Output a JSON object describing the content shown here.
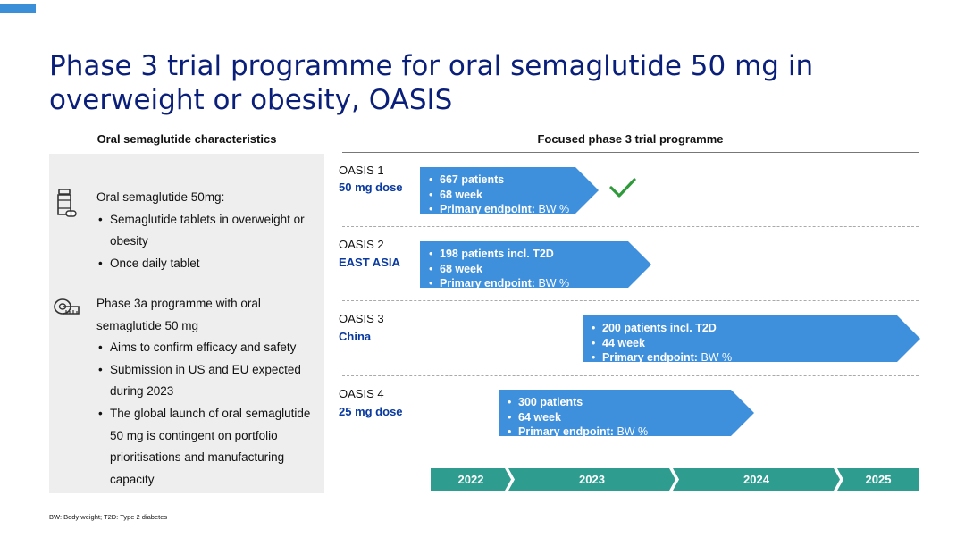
{
  "title": "Phase 3 trial programme for oral semaglutide 50 mg in overweight or obesity, OASIS",
  "left_header": "Oral semaglutide  characteristics",
  "right_header": "Focused phase 3 trial programme",
  "left_panel": {
    "block1": {
      "icon": "pill-bottle-icon",
      "heading": "Oral semaglutide 50mg:",
      "bullets": [
        "Semaglutide tablets in overweight or obesity",
        "Once daily tablet"
      ]
    },
    "block2": {
      "icon": "measuring-tape-icon",
      "heading": "Phase 3a programme with oral semaglutide 50 mg",
      "bullets": [
        "Aims to confirm efficacy and safety",
        "Submission in US and EU expected during 2023",
        "The global launch of oral semaglutide 50 mg is contingent on portfolio prioritisations and manufacturing capacity"
      ]
    }
  },
  "trials": [
    {
      "name": "OASIS 1",
      "sub": "50 mg dose",
      "line1": "667 patients",
      "line2": "68 week",
      "endpoint_label": "Primary endpoint:",
      "endpoint_value": "BW %",
      "completed": true
    },
    {
      "name": "OASIS 2",
      "sub": "EAST ASIA",
      "line1": "198 patients incl. T2D",
      "line2": "68 week",
      "endpoint_label": "Primary endpoint:",
      "endpoint_value": "BW %"
    },
    {
      "name": "OASIS 3",
      "sub": "China",
      "line1": "200 patients incl. T2D",
      "line2": "44 week",
      "endpoint_label": "Primary endpoint:",
      "endpoint_value": "BW %"
    },
    {
      "name": "OASIS 4",
      "sub": "25 mg dose",
      "line1": "300 patients",
      "line2": "64 week",
      "endpoint_label": "Primary endpoint:",
      "endpoint_value": "BW %"
    }
  ],
  "years": [
    "2022",
    "2023",
    "2024",
    "2025"
  ],
  "colors": {
    "title": "#0a1f7a",
    "arrow": "#3e8fdc",
    "timeline": "#2e9c8f",
    "check": "#2e9a3a"
  },
  "footnote": "BW: Body weight; T2D: Type 2 diabetes"
}
